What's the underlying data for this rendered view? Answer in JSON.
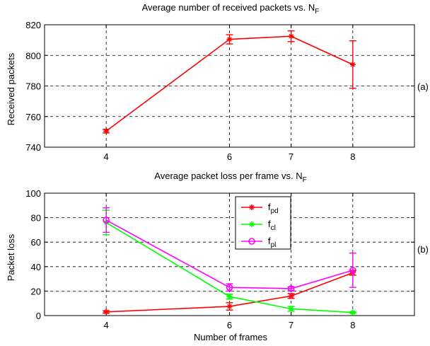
{
  "chart_data": [
    {
      "type": "line",
      "title": "Average number of received packets vs. N",
      "title_sub": "F",
      "ylabel": "Received packets",
      "xlabel": "",
      "panel_label": "(a)",
      "xlim": [
        3,
        9
      ],
      "ylim": [
        740,
        820
      ],
      "xticks": [
        4,
        6,
        7,
        8
      ],
      "yticks": [
        740,
        760,
        780,
        800,
        820
      ],
      "grid": true,
      "series": [
        {
          "color": "#ff0000",
          "marker": "star",
          "x": [
            4,
            6,
            7,
            8
          ],
          "y": [
            750.5,
            810.5,
            812.5,
            794
          ],
          "err": [
            1.2,
            3,
            3.5,
            15.5
          ]
        }
      ]
    },
    {
      "type": "line",
      "title": "Average packet loss per frame vs. N",
      "title_sub": "F",
      "ylabel": "Packet loss",
      "xlabel": "Number of frames",
      "panel_label": "(b)",
      "xlim": [
        3,
        9
      ],
      "ylim": [
        0,
        100
      ],
      "xticks": [
        4,
        6,
        7,
        8
      ],
      "yticks": [
        0,
        20,
        40,
        60,
        80,
        100
      ],
      "grid": true,
      "legend_placement": "top-center",
      "series": [
        {
          "name": "f",
          "name_sub": "pd",
          "color": "#ff0000",
          "marker": "star",
          "x": [
            4,
            6,
            7,
            8
          ],
          "y": [
            3,
            7.5,
            16,
            35
          ],
          "err": [
            1,
            3,
            2,
            2
          ]
        },
        {
          "name": "f",
          "name_sub": "cl",
          "color": "#00ff00",
          "marker": "star",
          "x": [
            4,
            6,
            7,
            8
          ],
          "y": [
            76,
            15.5,
            5.5,
            2.5
          ],
          "err": [
            10,
            2,
            2,
            0.5
          ]
        },
        {
          "name": "f",
          "name_sub": "pl",
          "color": "#ff00ff",
          "marker": "circle",
          "x": [
            4,
            6,
            7,
            8
          ],
          "y": [
            78,
            23,
            22,
            37
          ],
          "err": [
            10,
            3,
            1.5,
            14
          ]
        }
      ]
    }
  ]
}
